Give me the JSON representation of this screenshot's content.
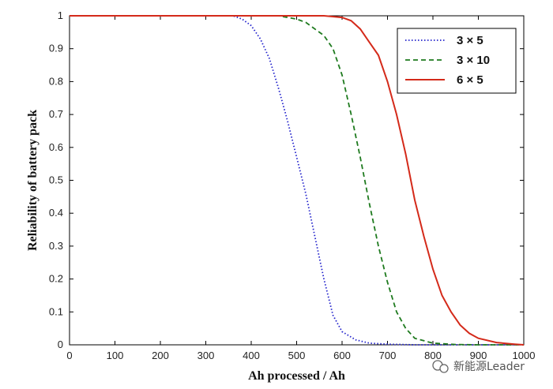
{
  "chart_data": {
    "type": "line",
    "xlabel": "Ah processed / Ah",
    "ylabel": "Reliability of battery pack",
    "xlim": [
      0,
      1000
    ],
    "ylim": [
      0,
      1
    ],
    "xticks": [
      0,
      100,
      200,
      300,
      400,
      500,
      600,
      700,
      800,
      900,
      1000
    ],
    "yticks": [
      0,
      0.1,
      0.2,
      0.3,
      0.4,
      0.5,
      0.6,
      0.7,
      0.8,
      0.9,
      1
    ],
    "grid": false,
    "legend_position": "top-right",
    "series": [
      {
        "name": "3 × 5",
        "color": "#2222cc",
        "style": "dotted",
        "points": [
          [
            0,
            1
          ],
          [
            360,
            1
          ],
          [
            380,
            0.99
          ],
          [
            400,
            0.97
          ],
          [
            420,
            0.93
          ],
          [
            440,
            0.87
          ],
          [
            460,
            0.78
          ],
          [
            480,
            0.68
          ],
          [
            500,
            0.57
          ],
          [
            520,
            0.46
          ],
          [
            540,
            0.33
          ],
          [
            560,
            0.2
          ],
          [
            580,
            0.09
          ],
          [
            600,
            0.04
          ],
          [
            630,
            0.015
          ],
          [
            660,
            0.005
          ],
          [
            700,
            0.002
          ],
          [
            760,
            0
          ],
          [
            1000,
            0
          ]
        ]
      },
      {
        "name": "3 × 10",
        "color": "#1e7a1e",
        "style": "dashed",
        "points": [
          [
            0,
            1
          ],
          [
            460,
            1
          ],
          [
            480,
            0.995
          ],
          [
            500,
            0.99
          ],
          [
            520,
            0.98
          ],
          [
            540,
            0.96
          ],
          [
            560,
            0.94
          ],
          [
            580,
            0.9
          ],
          [
            600,
            0.82
          ],
          [
            620,
            0.7
          ],
          [
            640,
            0.57
          ],
          [
            660,
            0.43
          ],
          [
            680,
            0.3
          ],
          [
            700,
            0.19
          ],
          [
            720,
            0.1
          ],
          [
            740,
            0.05
          ],
          [
            760,
            0.02
          ],
          [
            800,
            0.005
          ],
          [
            850,
            0.001
          ],
          [
            900,
            0
          ],
          [
            1000,
            0
          ]
        ]
      },
      {
        "name": "6 × 5",
        "color": "#d42a1a",
        "style": "solid",
        "points": [
          [
            0,
            1
          ],
          [
            560,
            1
          ],
          [
            600,
            0.995
          ],
          [
            620,
            0.985
          ],
          [
            640,
            0.96
          ],
          [
            660,
            0.92
          ],
          [
            680,
            0.88
          ],
          [
            700,
            0.8
          ],
          [
            720,
            0.7
          ],
          [
            740,
            0.58
          ],
          [
            760,
            0.44
          ],
          [
            780,
            0.33
          ],
          [
            800,
            0.23
          ],
          [
            820,
            0.15
          ],
          [
            840,
            0.1
          ],
          [
            860,
            0.06
          ],
          [
            880,
            0.035
          ],
          [
            900,
            0.02
          ],
          [
            940,
            0.007
          ],
          [
            980,
            0.002
          ],
          [
            1000,
            0
          ]
        ]
      }
    ]
  },
  "watermark": "新能源Leader"
}
